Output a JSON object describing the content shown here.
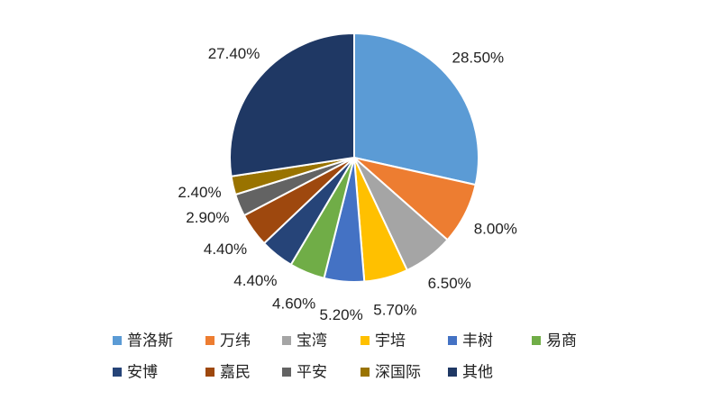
{
  "chart_data": {
    "type": "pie",
    "categories": [
      "普洛斯",
      "万纬",
      "宝湾",
      "宇培",
      "丰树",
      "易商",
      "安博",
      "嘉民",
      "平安",
      "深国际",
      "其他"
    ],
    "values": [
      28.5,
      8.0,
      6.5,
      5.7,
      5.2,
      4.6,
      4.4,
      4.4,
      2.9,
      2.4,
      27.4
    ],
    "value_labels": [
      "28.50%",
      "8.00%",
      "6.50%",
      "5.70%",
      "5.20%",
      "4.60%",
      "4.40%",
      "4.40%",
      "2.90%",
      "2.40%",
      "27.40%"
    ],
    "colors": [
      "#5b9bd5",
      "#ed7d31",
      "#a5a5a5",
      "#ffc000",
      "#4472c4",
      "#70ad47",
      "#264478",
      "#9e480e",
      "#636363",
      "#997300",
      "#1f3864"
    ]
  }
}
